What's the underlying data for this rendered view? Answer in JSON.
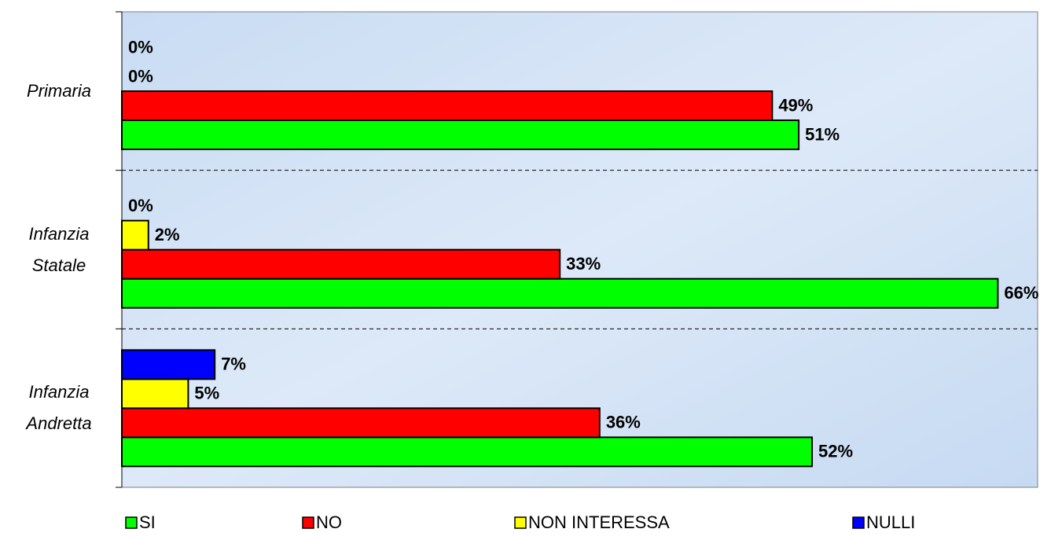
{
  "chart_data": {
    "type": "bar",
    "orientation": "horizontal",
    "categories": [
      "Primaria",
      "Infanzia Statale",
      "Infanzia Andretta"
    ],
    "series": [
      {
        "name": "SI",
        "color": "#00ff00",
        "values": [
          51,
          66,
          52
        ],
        "value_labels": [
          "51%",
          "66%",
          "52%"
        ]
      },
      {
        "name": "NO",
        "color": "#ff0000",
        "values": [
          49,
          33,
          36
        ],
        "value_labels": [
          "49%",
          "33%",
          "36%"
        ]
      },
      {
        "name": "NON INTERESSA",
        "color": "#ffff00",
        "values": [
          0,
          2,
          5
        ],
        "value_labels": [
          "0%",
          "2%",
          "5%"
        ]
      },
      {
        "name": "NULLI",
        "color": "#0000ff",
        "values": [
          0,
          0,
          7
        ],
        "value_labels": [
          "0%",
          "0%",
          "7%"
        ]
      }
    ],
    "xlim": [
      0,
      69
    ],
    "legend": "bottom"
  }
}
